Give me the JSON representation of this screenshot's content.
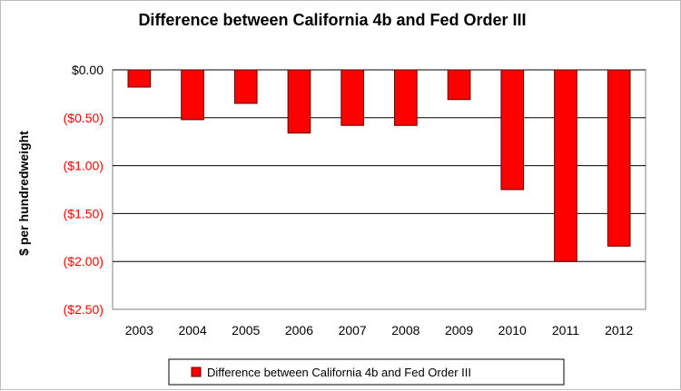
{
  "chart_data": {
    "type": "bar",
    "title": "Difference between California 4b and Fed Order III",
    "ylabel": "$ per hundredweight",
    "xlabel": "",
    "categories": [
      "2003",
      "2004",
      "2005",
      "2006",
      "2007",
      "2008",
      "2009",
      "2010",
      "2011",
      "2012"
    ],
    "series": [
      {
        "name": "Difference between California 4b and Fed Order III",
        "values": [
          -0.18,
          -0.52,
          -0.35,
          -0.66,
          -0.58,
          -0.58,
          -0.31,
          -1.25,
          -2.0,
          -1.84
        ]
      }
    ],
    "ylim": [
      -2.5,
      0.0
    ],
    "yticks": [
      0.0,
      -0.5,
      -1.0,
      -1.5,
      -2.0,
      -2.5
    ],
    "ytick_labels": [
      "$0.00",
      "($0.50)",
      "($1.00)",
      "($1.50)",
      "($2.00)",
      "($2.50)"
    ],
    "grid": true,
    "legend_position": "bottom",
    "colors": {
      "bar": "#ff0000",
      "bar_stroke": "#5a0000",
      "negative_tick_label": "#ff0000",
      "zero_tick_label": "#000000",
      "grid": "#000000"
    }
  }
}
